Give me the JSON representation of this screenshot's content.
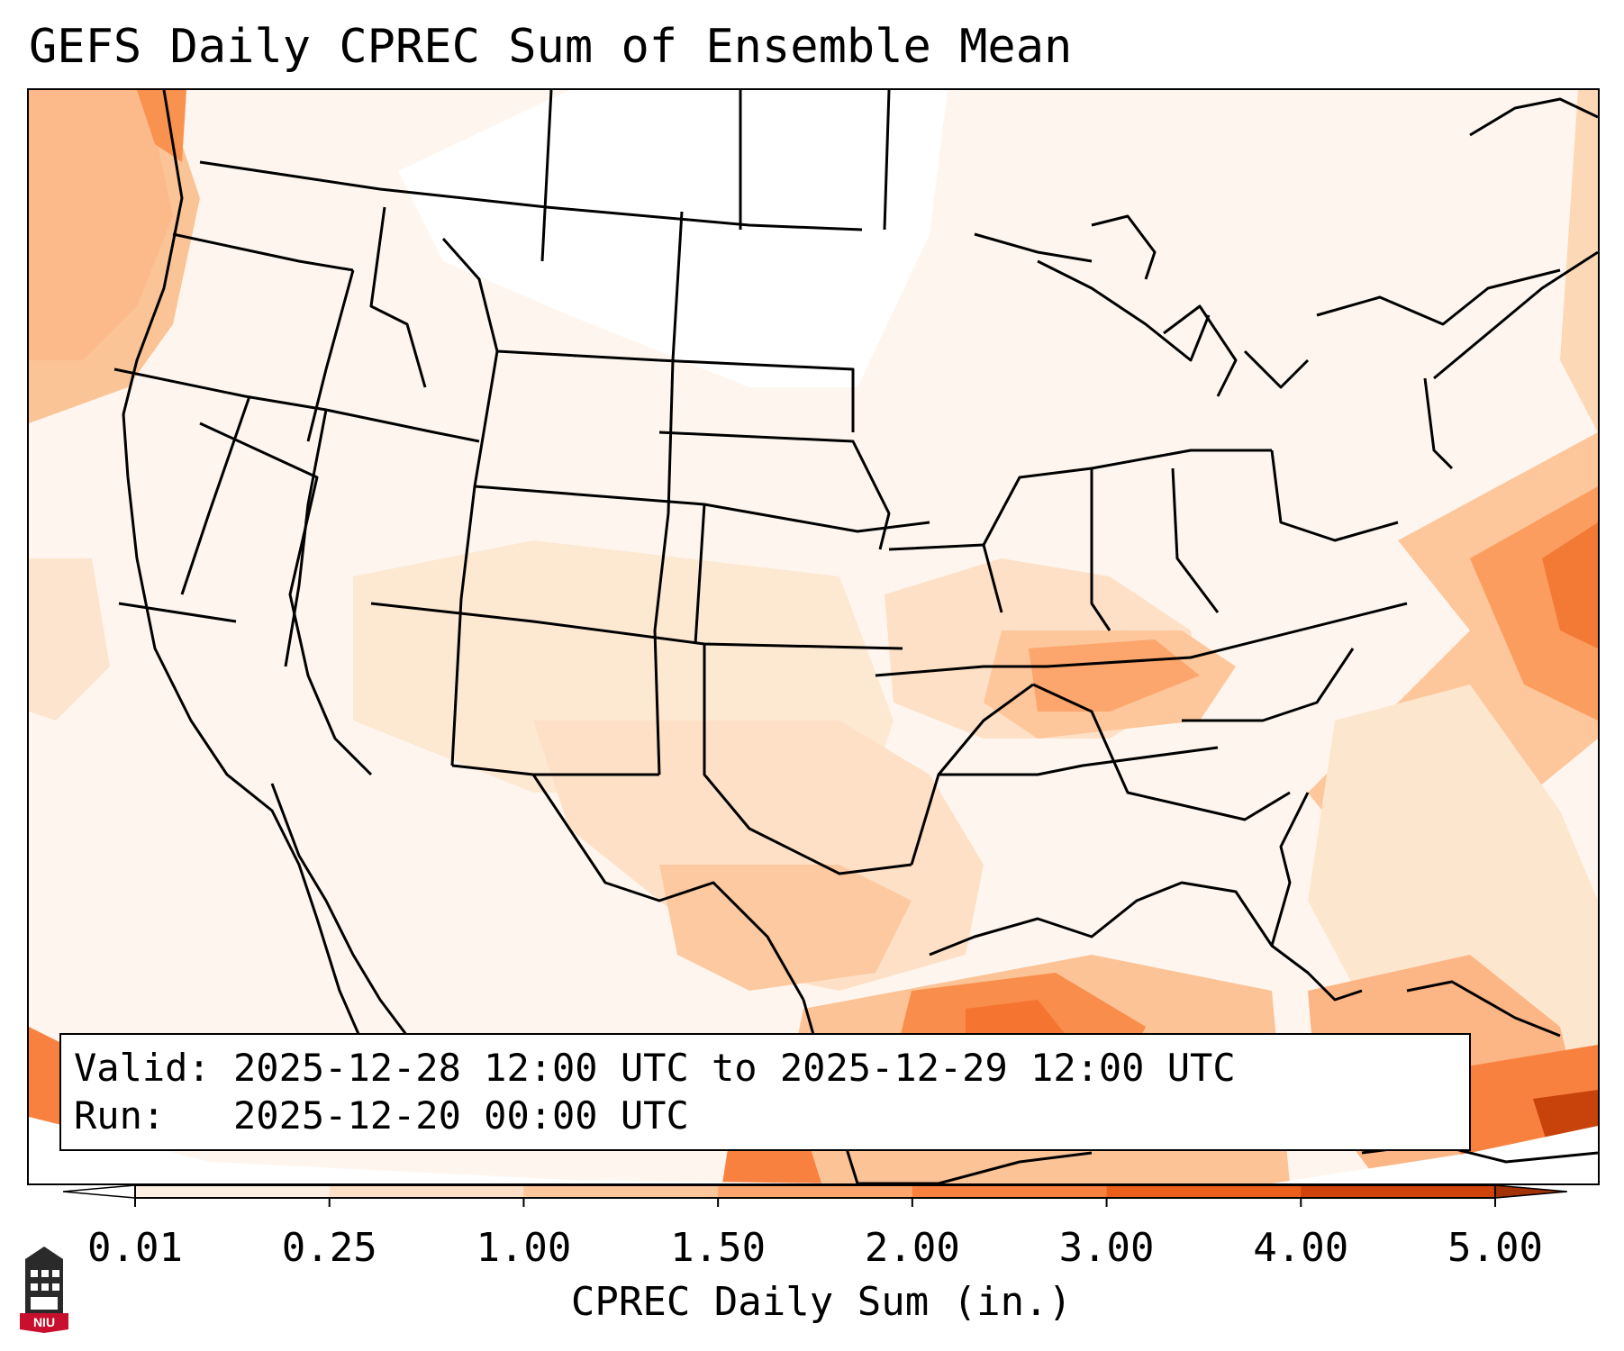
{
  "title": "GEFS Daily CPREC Sum of Ensemble Mean",
  "info": {
    "valid_label": "Valid:",
    "valid_value": "2025-12-28 12:00 UTC to 2025-12-29 12:00 UTC",
    "run_label": "Run:",
    "run_value": "2025-12-20 00:00 UTC"
  },
  "colorbar": {
    "label": "CPREC Daily Sum (in.)",
    "ticks": [
      "0.01",
      "0.25",
      "1.00",
      "1.50",
      "2.00",
      "3.00",
      "4.00",
      "5.00"
    ],
    "colors": [
      "#fef0e2",
      "#fde0c6",
      "#fdc69b",
      "#fca56c",
      "#f98140",
      "#ec5f1a",
      "#cf420a"
    ],
    "extend_low_color": "#ffffff",
    "extend_high_color": "#a33306"
  },
  "map": {
    "projection": "lambert-conformal",
    "region": "CONUS",
    "ocean_color": "#fef6ee",
    "borders_color": "#000000"
  },
  "logo": {
    "text": "NIU",
    "color": "#c8102e"
  }
}
